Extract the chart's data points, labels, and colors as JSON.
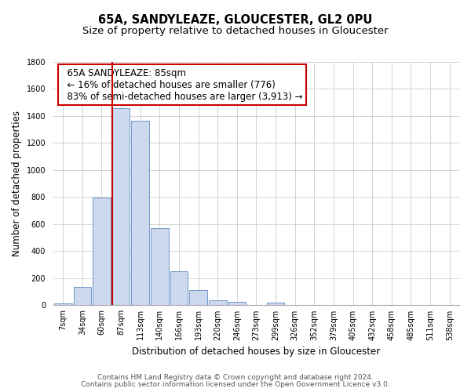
{
  "title": "65A, SANDYLEAZE, GLOUCESTER, GL2 0PU",
  "subtitle": "Size of property relative to detached houses in Gloucester",
  "xlabel": "Distribution of detached houses by size in Gloucester",
  "ylabel": "Number of detached properties",
  "bin_labels": [
    "7sqm",
    "34sqm",
    "60sqm",
    "87sqm",
    "113sqm",
    "140sqm",
    "166sqm",
    "193sqm",
    "220sqm",
    "246sqm",
    "273sqm",
    "299sqm",
    "326sqm",
    "352sqm",
    "379sqm",
    "405sqm",
    "432sqm",
    "458sqm",
    "485sqm",
    "511sqm",
    "538sqm"
  ],
  "bar_values": [
    15,
    135,
    795,
    1460,
    1365,
    570,
    250,
    110,
    35,
    25,
    0,
    20,
    0,
    0,
    0,
    0,
    0,
    0,
    0,
    0,
    0
  ],
  "bar_color": "#ccd9ee",
  "bar_edge_color": "#7098c8",
  "property_line_color": "#cc0000",
  "annotation_title": "65A SANDYLEAZE: 85sqm",
  "annotation_line1": "← 16% of detached houses are smaller (776)",
  "annotation_line2": "83% of semi-detached houses are larger (3,913) →",
  "annotation_box_color": "#ffffff",
  "annotation_box_edge": "#cc0000",
  "ylim": [
    0,
    1800
  ],
  "yticks": [
    0,
    200,
    400,
    600,
    800,
    1000,
    1200,
    1400,
    1600,
    1800
  ],
  "grid_color": "#cccccc",
  "footnote1": "Contains HM Land Registry data © Crown copyright and database right 2024.",
  "footnote2": "Contains public sector information licensed under the Open Government Licence v3.0.",
  "title_fontsize": 10.5,
  "subtitle_fontsize": 9.5,
  "axis_label_fontsize": 8.5,
  "tick_fontsize": 7,
  "annotation_fontsize": 8.5,
  "footnote_fontsize": 6.5
}
